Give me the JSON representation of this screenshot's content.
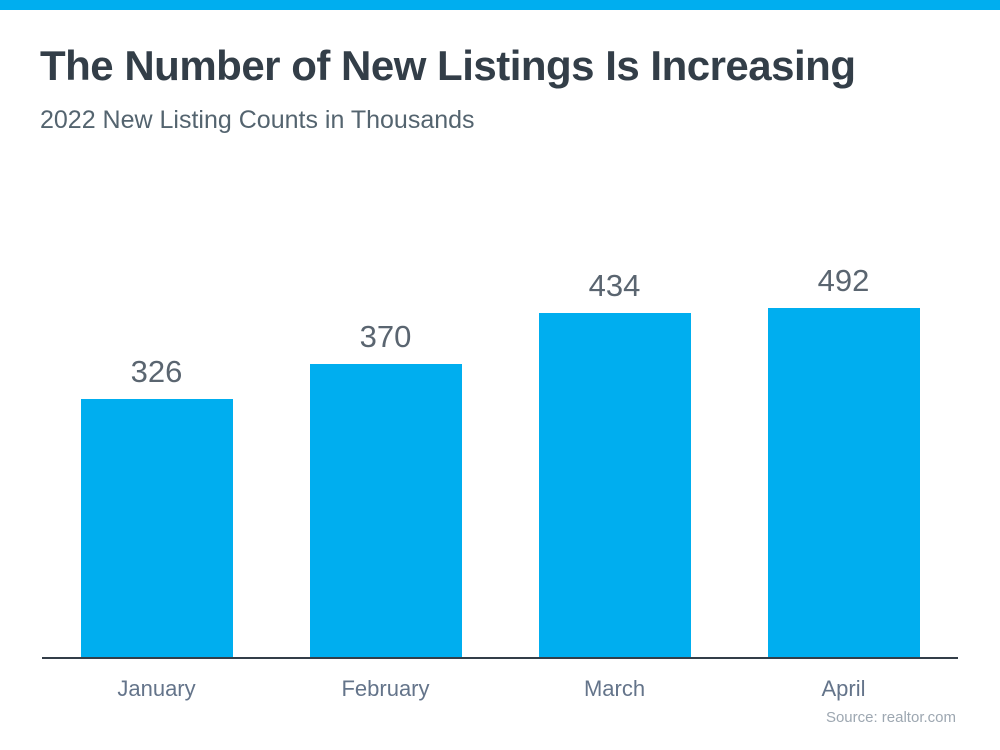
{
  "page": {
    "background": "#ffffff",
    "accent_color": "#00aeef"
  },
  "header": {
    "title": "The Number of New Listings Is Increasing",
    "subtitle": "2022 New Listing Counts in Thousands"
  },
  "chart_data": {
    "type": "bar",
    "title": "The Number of New Listings Is Increasing",
    "subtitle": "2022 New Listing Counts in Thousands",
    "categories": [
      "January",
      "February",
      "March",
      "April"
    ],
    "values": [
      326,
      370,
      434,
      492
    ],
    "xlabel": "",
    "ylabel": "",
    "ylim": [
      0,
      500
    ],
    "grid": false,
    "legend": false,
    "data_labels_shown": true,
    "bar_color": "#00aeef",
    "value_label_color": "#5a6570",
    "category_label_color": "#64748a",
    "axis_line_color": "#333e48"
  },
  "footer": {
    "source": "Source: realtor.com"
  }
}
